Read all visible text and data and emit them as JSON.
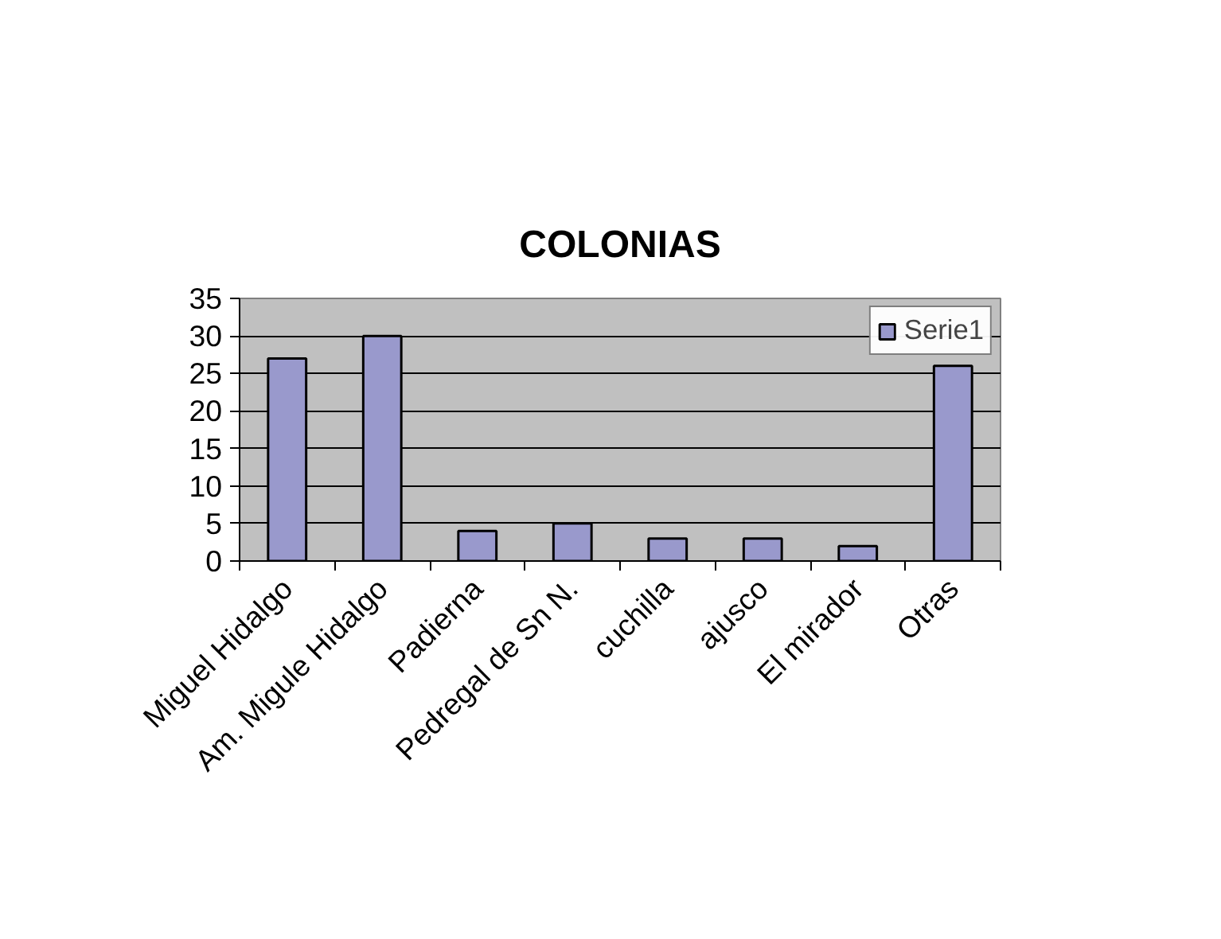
{
  "chart_data": {
    "type": "bar",
    "title": "COLONIAS",
    "categories": [
      "Miguel Hidalgo",
      "Am. Migule Hidalgo",
      "Padierna",
      "Pedregal de Sn N.",
      "cuchilla",
      "ajusco",
      "El mirador",
      "Otras"
    ],
    "series": [
      {
        "name": "Serie1",
        "color": "#9999cc",
        "values": [
          27,
          30,
          4,
          5,
          3,
          3,
          2,
          26
        ]
      }
    ],
    "ylim": [
      0,
      35
    ],
    "yticks": [
      0,
      5,
      10,
      15,
      20,
      25,
      30,
      35
    ],
    "grid": "y",
    "legend": "top right"
  }
}
